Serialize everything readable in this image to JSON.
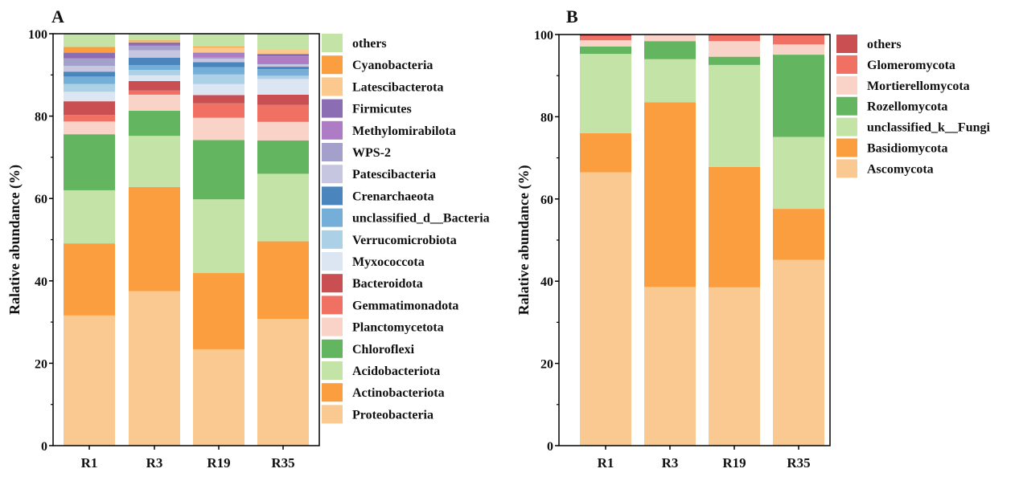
{
  "chart_data": [
    {
      "panel_label": "A",
      "type": "bar",
      "stacked": true,
      "ylabel": "Ralative abundance (%)",
      "ylim": [
        0,
        100
      ],
      "yticks": [
        "0",
        "20",
        "40",
        "60",
        "80",
        "100"
      ],
      "categories": [
        "R1",
        "R3",
        "R19",
        "R35"
      ],
      "legend_position": "right",
      "series": [
        {
          "name": "Proteobacteria",
          "color": "#f9c991",
          "values": [
            31.6,
            37.5,
            23.4,
            30.8
          ]
        },
        {
          "name": "Actinobacteriota",
          "color": "#fb9e40",
          "values": [
            17.5,
            25.3,
            18.5,
            18.8
          ]
        },
        {
          "name": "Acidobacteriota",
          "color": "#c3e3a7",
          "values": [
            12.9,
            12.4,
            17.9,
            16.4
          ]
        },
        {
          "name": "Chloroflexi",
          "color": "#64b560",
          "values": [
            13.6,
            6.1,
            14.4,
            8.1
          ]
        },
        {
          "name": "Planctomycetota",
          "color": "#f9d3c7",
          "values": [
            3.1,
            3.9,
            5.4,
            4.5
          ]
        },
        {
          "name": "Gemmatimonadota",
          "color": "#f07163",
          "values": [
            1.6,
            1.0,
            3.5,
            4.1
          ]
        },
        {
          "name": "Bacteroidota",
          "color": "#c94f52",
          "values": [
            3.3,
            2.3,
            2.0,
            2.5
          ]
        },
        {
          "name": "Myxococcota",
          "color": "#dbe6f2",
          "values": [
            2.3,
            1.4,
            2.7,
            3.8
          ]
        },
        {
          "name": "Verrucomicrobiota",
          "color": "#acd1e7",
          "values": [
            1.9,
            1.3,
            2.3,
            0.8
          ]
        },
        {
          "name": "unclassified_d__Bacteria",
          "color": "#75aed6",
          "values": [
            1.8,
            1.2,
            1.8,
            1.6
          ]
        },
        {
          "name": "Crenarchaeota",
          "color": "#4a86bd",
          "values": [
            1.2,
            1.8,
            1.2,
            0.6
          ]
        },
        {
          "name": "Patescibacteria",
          "color": "#c7c6e1",
          "values": [
            1.4,
            1.8,
            0.8,
            0.6
          ]
        },
        {
          "name": "WPS-2",
          "color": "#a3a0cb",
          "values": [
            1.8,
            1.0,
            0.3,
            0.0
          ]
        },
        {
          "name": "Methylomirabilota",
          "color": "#ae7cc4",
          "values": [
            0.0,
            0.1,
            1.0,
            1.9
          ]
        },
        {
          "name": "Firmicutes",
          "color": "#8b6db3",
          "values": [
            1.4,
            0.8,
            0.2,
            0.6
          ]
        },
        {
          "name": "Latescibacterota",
          "color": "#fbc98e",
          "values": [
            0.0,
            0.2,
            1.3,
            1.0
          ]
        },
        {
          "name": "Cyanobacteria",
          "color": "#fb9e40",
          "values": [
            1.4,
            0.3,
            0.2,
            0.0
          ]
        },
        {
          "name": "others",
          "color": "#c3e3a7",
          "values": [
            3.3,
            1.7,
            3.1,
            3.9
          ]
        }
      ]
    },
    {
      "panel_label": "B",
      "type": "bar",
      "stacked": true,
      "ylabel": "Ralative abundance (%)",
      "ylim": [
        0,
        100
      ],
      "yticks": [
        "0",
        "20",
        "40",
        "60",
        "80",
        "100"
      ],
      "categories": [
        "R1",
        "R3",
        "R19",
        "R35"
      ],
      "legend_position": "right",
      "series": [
        {
          "name": "Ascomycota",
          "color": "#f9c991",
          "values": [
            66.5,
            38.6,
            38.5,
            45.2
          ]
        },
        {
          "name": "Basidiomycota",
          "color": "#fb9e40",
          "values": [
            9.5,
            44.9,
            29.3,
            12.4
          ]
        },
        {
          "name": "unclassified_k__Fungi",
          "color": "#c3e3a7",
          "values": [
            19.3,
            10.5,
            24.8,
            17.5
          ]
        },
        {
          "name": "Rozellomycota",
          "color": "#64b560",
          "values": [
            1.8,
            4.4,
            2.0,
            20.0
          ]
        },
        {
          "name": "Mortierellomycota",
          "color": "#f9d3c7",
          "values": [
            1.5,
            1.6,
            3.8,
            2.5
          ]
        },
        {
          "name": "Glomeromycota",
          "color": "#f07163",
          "values": [
            1.0,
            0.0,
            1.6,
            2.4
          ]
        },
        {
          "name": "others",
          "color": "#c94f52",
          "values": [
            0.4,
            0.0,
            0.0,
            0.0
          ]
        }
      ]
    }
  ]
}
